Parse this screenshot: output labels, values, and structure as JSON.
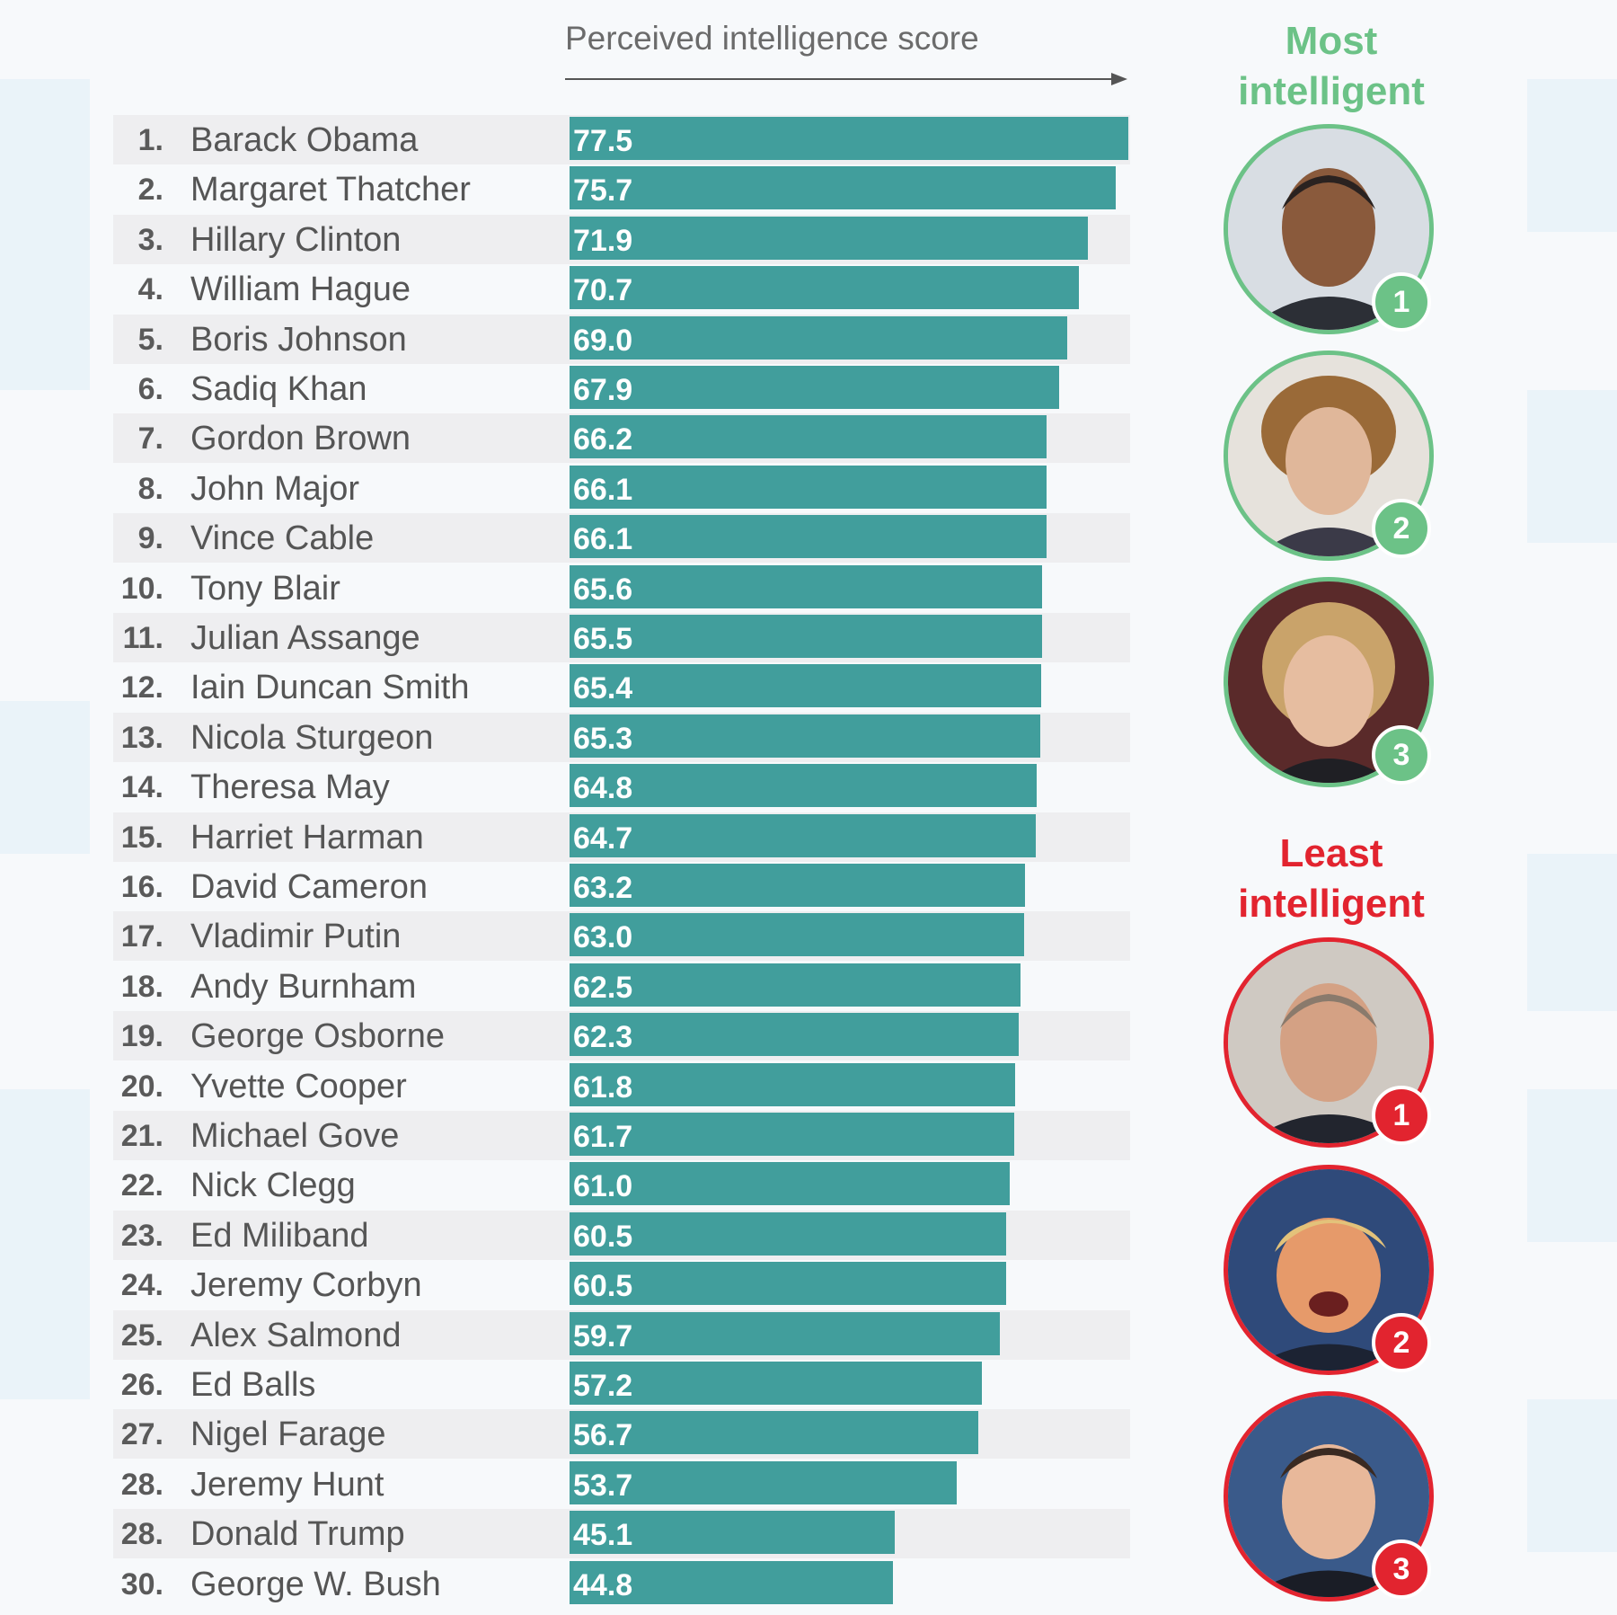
{
  "chart_data": {
    "type": "bar",
    "orientation": "horizontal",
    "xlabel": "Perceived intelligence score",
    "xlim": [
      0,
      77.5
    ],
    "grid": false,
    "bar_color": "#419e9c",
    "rows": [
      {
        "rank": "1.",
        "name": "Barack Obama",
        "value": 77.5,
        "label": "77.5"
      },
      {
        "rank": "2.",
        "name": "Margaret Thatcher",
        "value": 75.7,
        "label": "75.7"
      },
      {
        "rank": "3.",
        "name": "Hillary Clinton",
        "value": 71.9,
        "label": "71.9"
      },
      {
        "rank": "4.",
        "name": "William Hague",
        "value": 70.7,
        "label": "70.7"
      },
      {
        "rank": "5.",
        "name": "Boris Johnson",
        "value": 69.0,
        "label": "69.0"
      },
      {
        "rank": "6.",
        "name": "Sadiq Khan",
        "value": 67.9,
        "label": "67.9"
      },
      {
        "rank": "7.",
        "name": "Gordon Brown",
        "value": 66.2,
        "label": "66.2"
      },
      {
        "rank": "8.",
        "name": "John Major",
        "value": 66.1,
        "label": "66.1"
      },
      {
        "rank": "9.",
        "name": "Vince Cable",
        "value": 66.1,
        "label": "66.1"
      },
      {
        "rank": "10.",
        "name": "Tony Blair",
        "value": 65.6,
        "label": "65.6"
      },
      {
        "rank": "11.",
        "name": "Julian Assange",
        "value": 65.5,
        "label": "65.5"
      },
      {
        "rank": "12.",
        "name": "Iain Duncan Smith",
        "value": 65.4,
        "label": "65.4"
      },
      {
        "rank": "13.",
        "name": "Nicola Sturgeon",
        "value": 65.3,
        "label": "65.3"
      },
      {
        "rank": "14.",
        "name": "Theresa May",
        "value": 64.8,
        "label": "64.8"
      },
      {
        "rank": "15.",
        "name": "Harriet Harman",
        "value": 64.7,
        "label": "64.7"
      },
      {
        "rank": "16.",
        "name": "David Cameron",
        "value": 63.2,
        "label": "63.2"
      },
      {
        "rank": "17.",
        "name": "Vladimir Putin",
        "value": 63.0,
        "label": "63.0"
      },
      {
        "rank": "18.",
        "name": "Andy Burnham",
        "value": 62.5,
        "label": "62.5"
      },
      {
        "rank": "19.",
        "name": "George Osborne",
        "value": 62.3,
        "label": "62.3"
      },
      {
        "rank": "20.",
        "name": "Yvette Cooper",
        "value": 61.8,
        "label": "61.8"
      },
      {
        "rank": "21.",
        "name": "Michael Gove",
        "value": 61.7,
        "label": "61.7"
      },
      {
        "rank": "22.",
        "name": "Nick Clegg",
        "value": 61.0,
        "label": "61.0"
      },
      {
        "rank": "23.",
        "name": "Ed Miliband",
        "value": 60.5,
        "label": "60.5"
      },
      {
        "rank": "24.",
        "name": "Jeremy Corbyn",
        "value": 60.5,
        "label": "60.5"
      },
      {
        "rank": "25.",
        "name": "Alex Salmond",
        "value": 59.7,
        "label": "59.7"
      },
      {
        "rank": "26.",
        "name": "Ed Balls",
        "value": 57.2,
        "label": "57.2"
      },
      {
        "rank": "27.",
        "name": "Nigel Farage",
        "value": 56.7,
        "label": "56.7"
      },
      {
        "rank": "28.",
        "name": "Jeremy Hunt",
        "value": 53.7,
        "label": "53.7"
      },
      {
        "rank": "28.",
        "name": "Donald Trump",
        "value": 45.1,
        "label": "45.1"
      },
      {
        "rank": "30.",
        "name": "George W. Bush",
        "value": 44.8,
        "label": "44.8"
      }
    ]
  },
  "side_panel": {
    "most_heading": "Most intelligent",
    "least_heading": "Least intelligent",
    "most_color": "#6cc287",
    "least_color": "#e2242f",
    "most_badges": [
      "1",
      "2",
      "3"
    ],
    "least_badges": [
      "1",
      "2",
      "3"
    ]
  }
}
